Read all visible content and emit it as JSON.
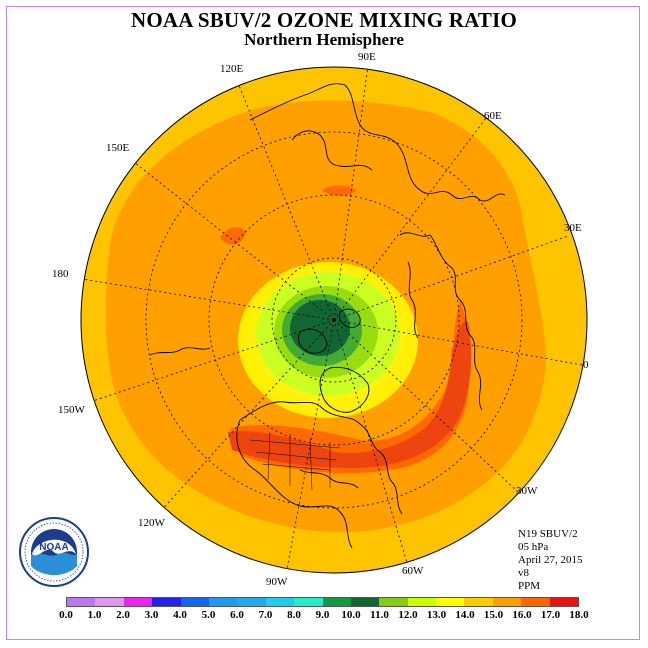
{
  "header": {
    "title": "NOAA SBUV/2 OZONE MIXING RATIO",
    "subtitle": "Northern Hemisphere"
  },
  "map": {
    "longitude_labels": [
      "90E",
      "60E",
      "30E",
      "0",
      "30W",
      "60W",
      "90W",
      "120W",
      "150W",
      "180",
      "150E",
      "120E"
    ],
    "colors": {
      "background_field": "#ffc400",
      "orange_band": "#ffa000",
      "dark_orange": "#ff6600",
      "red": "#ee3a10",
      "yellow": "#ffff00",
      "yellow_green": "#ccff00",
      "light_green": "#99dd00",
      "green": "#33aa33",
      "dark_green": "#116633"
    }
  },
  "info": {
    "lines": [
      "N19 SBUV/2",
      "05 hPa",
      "April 27, 2015",
      "v8",
      "PPM"
    ]
  },
  "colorbar": {
    "labels": [
      "0.0",
      "1.0",
      "2.0",
      "3.0",
      "4.0",
      "5.0",
      "6.0",
      "7.0",
      "8.0",
      "9.0",
      "10.0",
      "11.0",
      "12.0",
      "13.0",
      "14.0",
      "15.0",
      "16.0",
      "17.0",
      "18.0"
    ],
    "colors": [
      "#bb77ee",
      "#dd99ee",
      "#ee22ee",
      "#2222ee",
      "#1166ee",
      "#2299ee",
      "#22aaee",
      "#22ccee",
      "#22eecc",
      "#119944",
      "#116633",
      "#88cc11",
      "#ccff00",
      "#ffff00",
      "#ffcc00",
      "#ffa000",
      "#ff6600",
      "#ee1111",
      "#8b5a3a"
    ]
  },
  "logo": {
    "center_text": "NOAA",
    "ring_text_top": "NATIONAL OCEANIC AND ATMOSPHERIC ADMINISTRATION",
    "ring_text_bottom": "U.S. DEPARTMENT OF COMMERCE"
  }
}
